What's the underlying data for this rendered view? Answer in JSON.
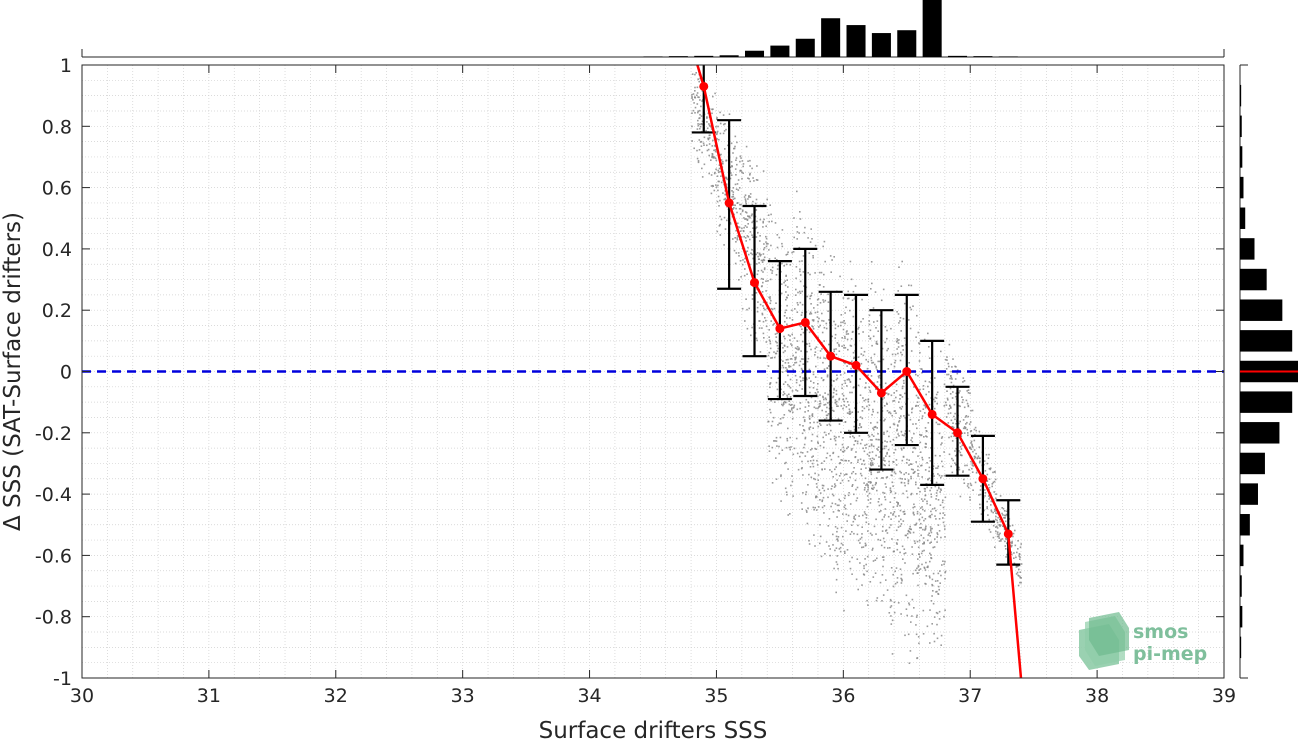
{
  "chart_data": {
    "type": "scatter",
    "xlabel": "Surface drifters SSS",
    "ylabel": "Δ SSS (SAT-Surface drifters)",
    "xlim": [
      30,
      39
    ],
    "ylim": [
      -1,
      1
    ],
    "x_ticks": [
      "30",
      "31",
      "32",
      "33",
      "34",
      "35",
      "36",
      "37",
      "38",
      "39"
    ],
    "y_ticks": [
      "-1",
      "-0.8",
      "-0.6",
      "-0.4",
      "-0.2",
      "0",
      "0.2",
      "0.4",
      "0.6",
      "0.8",
      "1"
    ],
    "grid": "minor dotted",
    "reference_line": {
      "y": 0,
      "style": "dashed",
      "color": "#0000dd"
    },
    "scatter": {
      "color": "#8a8a8a",
      "description": "dense cloud of individual match-up points",
      "x_range": [
        34.8,
        37.3
      ],
      "cloud_segments": [
        {
          "x": 34.9,
          "y_min": 0.6,
          "y_max": 1.0
        },
        {
          "x": 35.1,
          "y_min": 0.35,
          "y_max": 0.85
        },
        {
          "x": 35.3,
          "y_min": 0.05,
          "y_max": 0.75
        },
        {
          "x": 35.5,
          "y_min": -0.45,
          "y_max": 0.55
        },
        {
          "x": 35.7,
          "y_min": -0.6,
          "y_max": 0.55
        },
        {
          "x": 35.9,
          "y_min": -0.75,
          "y_max": 0.45
        },
        {
          "x": 36.1,
          "y_min": -0.8,
          "y_max": 0.4
        },
        {
          "x": 36.3,
          "y_min": -0.9,
          "y_max": 0.35
        },
        {
          "x": 36.5,
          "y_min": -0.95,
          "y_max": 0.35
        },
        {
          "x": 36.7,
          "y_min": -1.0,
          "y_max": 0.15
        },
        {
          "x": 36.9,
          "y_min": -0.4,
          "y_max": 0.05
        },
        {
          "x": 37.1,
          "y_min": -0.5,
          "y_max": -0.2
        },
        {
          "x": 37.3,
          "y_min": -0.65,
          "y_max": -0.45
        }
      ]
    },
    "mean_series": {
      "color": "#ff0000",
      "x": [
        34.9,
        35.1,
        35.3,
        35.5,
        35.7,
        35.9,
        36.1,
        36.3,
        36.5,
        36.7,
        36.9,
        37.1,
        37.3
      ],
      "mean": [
        0.93,
        0.55,
        0.29,
        0.14,
        0.16,
        0.05,
        0.02,
        -0.07,
        0.0,
        -0.14,
        -0.2,
        -0.35,
        -0.53
      ],
      "std_low": [
        0.78,
        0.27,
        0.05,
        -0.09,
        -0.08,
        -0.16,
        -0.2,
        -0.32,
        -0.24,
        -0.37,
        -0.34,
        -0.49,
        -0.63
      ],
      "std_high": [
        1.08,
        0.82,
        0.54,
        0.36,
        0.4,
        0.26,
        0.25,
        0.2,
        0.25,
        0.1,
        -0.05,
        -0.21,
        -0.42
      ],
      "line_extension": {
        "start": [
          34.85,
          1.0
        ],
        "end": [
          37.4,
          -1.0
        ]
      }
    },
    "top_histogram": {
      "bin_centers": [
        34.5,
        34.7,
        34.9,
        35.1,
        35.3,
        35.5,
        35.7,
        35.9,
        36.1,
        36.3,
        36.5,
        36.7,
        36.9,
        37.1,
        37.3
      ],
      "relative_counts": [
        0.01,
        0.015,
        0.02,
        0.03,
        0.11,
        0.2,
        0.32,
        0.68,
        0.56,
        0.42,
        0.47,
        1.0,
        0.02,
        0.015,
        0.01
      ]
    },
    "right_histogram": {
      "bin_centers": [
        0.9,
        0.7,
        0.5,
        0.3,
        0.1,
        -0.1,
        -0.3,
        -0.5,
        -0.7,
        -0.9,
        0.8,
        0.6,
        0.4,
        0.2,
        0.0,
        -0.2,
        -0.4,
        -0.6,
        -0.8
      ],
      "bins": [
        {
          "y": 0.9,
          "v": 0.02
        },
        {
          "y": 0.8,
          "v": 0.03
        },
        {
          "y": 0.7,
          "v": 0.04
        },
        {
          "y": 0.6,
          "v": 0.06
        },
        {
          "y": 0.5,
          "v": 0.09
        },
        {
          "y": 0.4,
          "v": 0.25
        },
        {
          "y": 0.3,
          "v": 0.46
        },
        {
          "y": 0.2,
          "v": 0.73
        },
        {
          "y": 0.1,
          "v": 0.9
        },
        {
          "y": 0.0,
          "v": 1.0
        },
        {
          "y": -0.1,
          "v": 0.9
        },
        {
          "y": -0.2,
          "v": 0.68
        },
        {
          "y": -0.3,
          "v": 0.43
        },
        {
          "y": -0.4,
          "v": 0.31
        },
        {
          "y": -0.5,
          "v": 0.17
        },
        {
          "y": -0.6,
          "v": 0.06
        },
        {
          "y": -0.7,
          "v": 0.03
        },
        {
          "y": -0.8,
          "v": 0.04
        },
        {
          "y": -0.9,
          "v": 0.02
        }
      ],
      "zero_line_color": "#ff0000"
    }
  },
  "logo": {
    "line1": "smos",
    "line2": "pi-mep"
  }
}
